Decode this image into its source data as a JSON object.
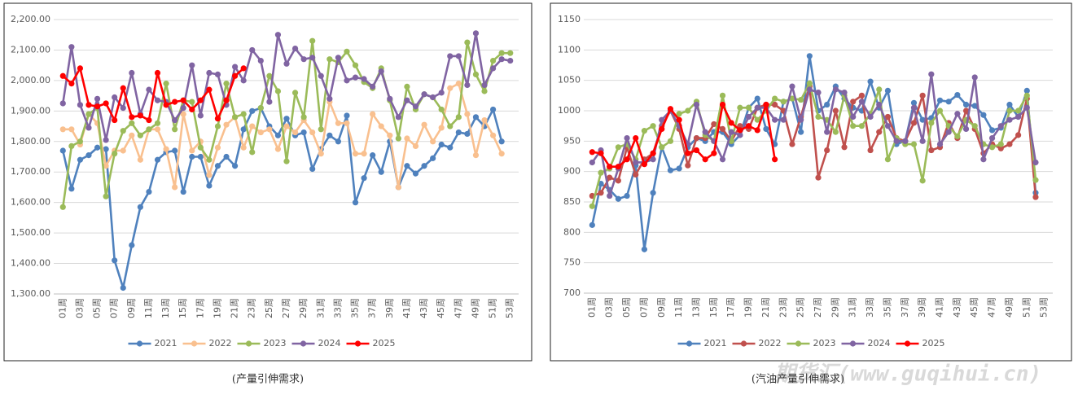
{
  "chart_data": [
    {
      "type": "line",
      "caption": "(产量引伸需求)",
      "categories": [
        "01周",
        null,
        "03周",
        null,
        "05周",
        null,
        "07周",
        null,
        "09周",
        null,
        "11周",
        null,
        "13周",
        null,
        "15周",
        null,
        "17周",
        null,
        "19周",
        null,
        "21周",
        null,
        "23周",
        null,
        "25周",
        null,
        "27周",
        null,
        "29周",
        null,
        "31周",
        null,
        "33周",
        null,
        "35周",
        null,
        "37周",
        null,
        "39周",
        null,
        "41周",
        null,
        "43周",
        null,
        "45周",
        null,
        "47周",
        null,
        "49周",
        null,
        "51周",
        null,
        "53周"
      ],
      "ylim": [
        1300,
        2200
      ],
      "yticks": [
        {
          "value": 1300,
          "label": "1,300.00"
        },
        {
          "value": 1400,
          "label": "1,400.00"
        },
        {
          "value": 1500,
          "label": "1,500.00"
        },
        {
          "value": 1600,
          "label": "1,600.00"
        },
        {
          "value": 1700,
          "label": "1,700.00"
        },
        {
          "value": 1800,
          "label": "1,800.00"
        },
        {
          "value": 1900,
          "label": "1,900.00"
        },
        {
          "value": 2000,
          "label": "2,000.00"
        },
        {
          "value": 2100,
          "label": "2,100.00"
        },
        {
          "value": 2200,
          "label": "2,200.00"
        }
      ],
      "grid": true,
      "legend": "bottom",
      "series": [
        {
          "name": "2021",
          "color": "#4f81bd",
          "values": [
            1770,
            1645,
            1740,
            1755,
            1780,
            1775,
            1410,
            1320,
            1460,
            1585,
            1635,
            1740,
            1765,
            1770,
            1635,
            1750,
            1750,
            1655,
            1720,
            1750,
            1720,
            1840,
            1900,
            1910,
            1850,
            1820,
            1875,
            1820,
            1830,
            1710,
            1775,
            1820,
            1800,
            1885,
            1600,
            1680,
            1755,
            1700,
            1800,
            1650,
            1720,
            1695,
            1720,
            1745,
            1790,
            1780,
            1830,
            1825,
            1880,
            1850,
            1905,
            1800,
            null
          ]
        },
        {
          "name": "2022",
          "color": "#f9c08f",
          "values": [
            1840,
            1840,
            1790,
            1890,
            1860,
            1720,
            1770,
            1770,
            1820,
            1740,
            1840,
            1840,
            1775,
            1650,
            1890,
            1770,
            1800,
            1690,
            1780,
            1855,
            1880,
            1780,
            1850,
            1830,
            1840,
            1775,
            1850,
            1830,
            1870,
            1830,
            1760,
            1930,
            1860,
            1860,
            1760,
            1760,
            1890,
            1850,
            1820,
            1650,
            1810,
            1785,
            1855,
            1800,
            1845,
            1975,
            1990,
            1890,
            1755,
            1870,
            1820,
            1760,
            null
          ]
        },
        {
          "name": "2023",
          "color": "#9bbb59",
          "values": [
            1585,
            1785,
            1800,
            1890,
            1910,
            1620,
            1760,
            1835,
            1860,
            1820,
            1840,
            1860,
            1990,
            1840,
            1935,
            1930,
            1780,
            1740,
            1850,
            1990,
            1880,
            1890,
            1765,
            1910,
            2015,
            1965,
            1735,
            1960,
            1880,
            2130,
            1840,
            2070,
            2060,
            2095,
            2050,
            1995,
            1975,
            2040,
            1935,
            1810,
            1980,
            1905,
            1955,
            1945,
            1905,
            1850,
            1880,
            2125,
            2020,
            1965,
            2065,
            2090,
            2090
          ]
        },
        {
          "name": "2024",
          "color": "#8064a2",
          "values": [
            1925,
            2110,
            1920,
            1845,
            1940,
            1805,
            1945,
            1910,
            2025,
            1890,
            1970,
            1935,
            1930,
            1870,
            1910,
            2050,
            1885,
            2025,
            2020,
            1920,
            2045,
            2000,
            2100,
            2065,
            1930,
            2150,
            2055,
            2105,
            2070,
            2075,
            2015,
            1940,
            2075,
            2000,
            2010,
            2005,
            1980,
            2030,
            1940,
            1880,
            1935,
            1915,
            1955,
            1945,
            1960,
            2080,
            2080,
            1985,
            2155,
            1985,
            2040,
            2070,
            2065
          ]
        },
        {
          "name": "2025",
          "color": "#ff0000",
          "values": [
            2015,
            1990,
            2040,
            1920,
            1915,
            1925,
            1870,
            1975,
            1880,
            1885,
            1870,
            2025,
            1920,
            1930,
            1935,
            1905,
            1935,
            1970,
            1875,
            1935,
            2015,
            2040,
            null,
            null,
            null,
            null,
            null,
            null,
            null,
            null,
            null,
            null,
            null,
            null,
            null,
            null,
            null,
            null,
            null,
            null,
            null,
            null,
            null,
            null,
            null,
            null,
            null,
            null,
            null,
            null,
            null,
            null,
            null
          ]
        }
      ]
    },
    {
      "type": "line",
      "caption": "(汽油产量引伸需求)",
      "categories": [
        "01周",
        null,
        "03周",
        null,
        "05周",
        null,
        "07周",
        null,
        "09周",
        null,
        "11周",
        null,
        "13周",
        null,
        "15周",
        null,
        "17周",
        null,
        "19周",
        null,
        "21周",
        null,
        "23周",
        null,
        "25周",
        null,
        "27周",
        null,
        "29周",
        null,
        "31周",
        null,
        "33周",
        null,
        "35周",
        null,
        "37周",
        null,
        "39周",
        null,
        "41周",
        null,
        "43周",
        null,
        "45周",
        null,
        "47周",
        null,
        "49周",
        null,
        "51周",
        null,
        "53周"
      ],
      "ylim": [
        700,
        1150
      ],
      "yticks": [
        700,
        750,
        800,
        850,
        900,
        950,
        1000,
        1050,
        1100,
        1150
      ],
      "grid": true,
      "legend": "bottom",
      "series": [
        {
          "name": "2021",
          "color": "#4f81bd",
          "values": [
            812,
            880,
            870,
            855,
            860,
            910,
            772,
            865,
            940,
            902,
            905,
            940,
            955,
            950,
            965,
            965,
            945,
            960,
            1005,
            1020,
            970,
            945,
            1015,
            1020,
            965,
            1090,
            1000,
            1010,
            1040,
            1020,
            1005,
            1000,
            1048,
            1005,
            1033,
            945,
            950,
            1013,
            985,
            988,
            1017,
            1015,
            1026,
            1010,
            1008,
            993,
            968,
            972,
            1010,
            990,
            1033,
            865,
            null
          ]
        },
        {
          "name": "2022",
          "color": "#c0504d",
          "values": [
            860,
            865,
            890,
            885,
            940,
            895,
            920,
            930,
            975,
            1000,
            970,
            910,
            955,
            955,
            978,
            970,
            950,
            975,
            970,
            1005,
            1010,
            1010,
            1000,
            945,
            990,
            1040,
            890,
            935,
            1000,
            940,
            1015,
            1025,
            935,
            965,
            990,
            955,
            950,
            980,
            1025,
            935,
            940,
            980,
            955,
            1000,
            970,
            930,
            945,
            938,
            945,
            960,
            1020,
            858,
            null
          ]
        },
        {
          "name": "2023",
          "color": "#9bbb59",
          "values": [
            843,
            898,
            905,
            940,
            945,
            920,
            967,
            975,
            940,
            950,
            995,
            1000,
            1015,
            960,
            950,
            1025,
            950,
            1005,
            1005,
            985,
            1000,
            1020,
            1015,
            1020,
            1018,
            1045,
            990,
            985,
            965,
            1025,
            975,
            975,
            995,
            1035,
            920,
            955,
            945,
            945,
            885,
            980,
            1000,
            975,
            958,
            985,
            975,
            945,
            940,
            945,
            1000,
            1000,
            1025,
            886,
            null
          ]
        },
        {
          "name": "2024",
          "color": "#8064a2",
          "values": [
            915,
            935,
            860,
            905,
            955,
            915,
            915,
            920,
            985,
            1000,
            975,
            945,
            1010,
            965,
            950,
            920,
            965,
            960,
            990,
            1005,
            1005,
            985,
            985,
            1040,
            985,
            1035,
            1030,
            965,
            1035,
            1030,
            990,
            1015,
            990,
            1010,
            975,
            950,
            950,
            1005,
            950,
            1060,
            945,
            965,
            995,
            970,
            1055,
            920,
            955,
            975,
            985,
            990,
            1005,
            915,
            null
          ]
        },
        {
          "name": "2025",
          "color": "#ff0000",
          "values": [
            932,
            930,
            908,
            908,
            920,
            955,
            912,
            930,
            970,
            1003,
            985,
            930,
            935,
            920,
            930,
            1010,
            980,
            968,
            975,
            968,
            1010,
            920,
            null,
            null,
            null,
            null,
            null,
            null,
            null,
            null,
            null,
            null,
            null,
            null,
            null,
            null,
            null,
            null,
            null,
            null,
            null,
            null,
            null,
            null,
            null,
            null,
            null,
            null,
            null,
            null,
            null,
            null,
            null
          ]
        }
      ]
    }
  ],
  "watermark": "期货汇(www.guqihui.cn)"
}
